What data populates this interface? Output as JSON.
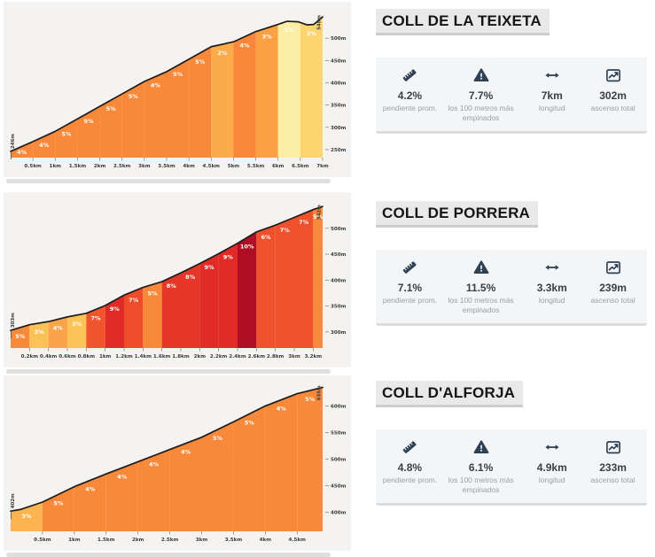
{
  "colors": {
    "icon": "#2f4154",
    "title_bg": "#e9e9e9",
    "card_bg": "#f3f5f6",
    "chart_bg": "#f4f3f1",
    "curve": "#1c1c1c",
    "axis_text": "#3a3a3a",
    "segment_label": "#ffffff"
  },
  "climbs": [
    {
      "title": "COLL DE LA TEIXETA",
      "stats": [
        {
          "icon": "ruler-icon",
          "value": "4.2%",
          "label": "pendiente prom."
        },
        {
          "icon": "warning-icon",
          "value": "7.7%",
          "label": "los 100 metros más empinados"
        },
        {
          "icon": "length-arrow-icon",
          "value": "7km",
          "label": "longitud"
        },
        {
          "icon": "ascent-chart-icon",
          "value": "302m",
          "label": "ascenso total"
        }
      ]
    },
    {
      "title": "COLL DE PORRERA",
      "stats": [
        {
          "icon": "ruler-icon",
          "value": "7.1%",
          "label": "pendiente prom."
        },
        {
          "icon": "warning-icon",
          "value": "11.5%",
          "label": "los 100 metros más empinados"
        },
        {
          "icon": "length-arrow-icon",
          "value": "3.3km",
          "label": "longitud"
        },
        {
          "icon": "ascent-chart-icon",
          "value": "239m",
          "label": "ascenso total"
        }
      ]
    },
    {
      "title": "COLL D'ALFORJA",
      "stats": [
        {
          "icon": "ruler-icon",
          "value": "4.8%",
          "label": "pendiente prom."
        },
        {
          "icon": "warning-icon",
          "value": "6.1%",
          "label": "los 100 metros más empinados"
        },
        {
          "icon": "length-arrow-icon",
          "value": "4.9km",
          "label": "longitud"
        },
        {
          "icon": "ascent-chart-icon",
          "value": "233m",
          "label": "ascenso total"
        }
      ]
    }
  ],
  "chart_data": [
    {
      "type": "area",
      "title": "COLL DE LA TEIXETA",
      "xlabel": "",
      "ylabel": "",
      "grid": false,
      "legend": false,
      "total_km": 7,
      "ylim": [
        232,
        566
      ],
      "start_label": "246m",
      "summit_label": "548m",
      "x_ticks": [
        {
          "km": 0.5,
          "label": "0.5km"
        },
        {
          "km": 1,
          "label": "1km"
        },
        {
          "km": 1.5,
          "label": "1.5km"
        },
        {
          "km": 2,
          "label": "2km"
        },
        {
          "km": 2.5,
          "label": "2.5km"
        },
        {
          "km": 3,
          "label": "3km"
        },
        {
          "km": 3.5,
          "label": "3.5km"
        },
        {
          "km": 4,
          "label": "4km"
        },
        {
          "km": 4.5,
          "label": "4.5km"
        },
        {
          "km": 5,
          "label": "5km"
        },
        {
          "km": 5.5,
          "label": "5.5km"
        },
        {
          "km": 6,
          "label": "6km"
        },
        {
          "km": 6.5,
          "label": "6.5km"
        },
        {
          "km": 7,
          "label": "7km"
        }
      ],
      "y_ticks": [
        {
          "m": 250,
          "label": "250m"
        },
        {
          "m": 300,
          "label": "300m"
        },
        {
          "m": 350,
          "label": "350m"
        },
        {
          "m": 400,
          "label": "400m"
        },
        {
          "m": 450,
          "label": "450m"
        },
        {
          "m": 500,
          "label": "500m"
        }
      ],
      "segments": [
        {
          "from": 0,
          "to": 0.5,
          "pct": "4%",
          "color": "#f9893a"
        },
        {
          "from": 0.5,
          "to": 1,
          "pct": "4%",
          "color": "#f9893a"
        },
        {
          "from": 1,
          "to": 1.5,
          "pct": "5%",
          "color": "#f9893a"
        },
        {
          "from": 1.5,
          "to": 2,
          "pct": "5%",
          "color": "#f9893a"
        },
        {
          "from": 2,
          "to": 2.5,
          "pct": "5%",
          "color": "#f9893a"
        },
        {
          "from": 2.5,
          "to": 3,
          "pct": "5%",
          "color": "#f9893a"
        },
        {
          "from": 3,
          "to": 3.5,
          "pct": "4%",
          "color": "#f9893a"
        },
        {
          "from": 3.5,
          "to": 4,
          "pct": "5%",
          "color": "#f9893a"
        },
        {
          "from": 4,
          "to": 4.5,
          "pct": "5%",
          "color": "#f9893a"
        },
        {
          "from": 4.5,
          "to": 5,
          "pct": "2%",
          "color": "#fbab49"
        },
        {
          "from": 5,
          "to": 5.5,
          "pct": "4%",
          "color": "#f8863b"
        },
        {
          "from": 5.5,
          "to": 6,
          "pct": "3%",
          "color": "#faa143"
        },
        {
          "from": 6,
          "to": 6.5,
          "pct": "1%",
          "color": "#fdeea6"
        },
        {
          "from": 6.5,
          "to": 7,
          "pct": "2%",
          "color": "#fcd571"
        }
      ],
      "points": [
        [
          0,
          246
        ],
        [
          0.5,
          268
        ],
        [
          1,
          291
        ],
        [
          1.5,
          319
        ],
        [
          2,
          347
        ],
        [
          2.5,
          375
        ],
        [
          3,
          403
        ],
        [
          3.5,
          425
        ],
        [
          4,
          453
        ],
        [
          4.5,
          481
        ],
        [
          5,
          492
        ],
        [
          5.5,
          515
        ],
        [
          6,
          531
        ],
        [
          6.2,
          538
        ],
        [
          6.45,
          537
        ],
        [
          6.65,
          530
        ],
        [
          6.8,
          531
        ],
        [
          7,
          548
        ]
      ]
    },
    {
      "type": "area",
      "title": "COLL DE PORRERA",
      "xlabel": "",
      "ylabel": "",
      "grid": false,
      "legend": false,
      "total_km": 3.3,
      "ylim": [
        269,
        556
      ],
      "start_label": "303m",
      "summit_label": "542m",
      "x_ticks": [
        {
          "km": 0.2,
          "label": "0.2km"
        },
        {
          "km": 0.4,
          "label": "0.4km"
        },
        {
          "km": 0.6,
          "label": "0.6km"
        },
        {
          "km": 0.8,
          "label": "0.8km"
        },
        {
          "km": 1,
          "label": "1km"
        },
        {
          "km": 1.2,
          "label": "1.2km"
        },
        {
          "km": 1.4,
          "label": "1.4km"
        },
        {
          "km": 1.6,
          "label": "1.6km"
        },
        {
          "km": 1.8,
          "label": "1.8km"
        },
        {
          "km": 2,
          "label": "2km"
        },
        {
          "km": 2.2,
          "label": "2.2km"
        },
        {
          "km": 2.4,
          "label": "2.4km"
        },
        {
          "km": 2.6,
          "label": "2.6km"
        },
        {
          "km": 2.8,
          "label": "2.8km"
        },
        {
          "km": 3,
          "label": "3km"
        },
        {
          "km": 3.2,
          "label": "3.2km"
        }
      ],
      "y_ticks": [
        {
          "m": 300,
          "label": "300m"
        },
        {
          "m": 350,
          "label": "350m"
        },
        {
          "m": 400,
          "label": "400m"
        },
        {
          "m": 450,
          "label": "450m"
        },
        {
          "m": 500,
          "label": "500m"
        }
      ],
      "segments": [
        {
          "from": 0,
          "to": 0.2,
          "pct": "5%",
          "color": "#f9893a"
        },
        {
          "from": 0.2,
          "to": 0.4,
          "pct": "3%",
          "color": "#fbc258"
        },
        {
          "from": 0.4,
          "to": 0.6,
          "pct": "4%",
          "color": "#faa348"
        },
        {
          "from": 0.6,
          "to": 0.8,
          "pct": "3%",
          "color": "#fbc258"
        },
        {
          "from": 0.8,
          "to": 1,
          "pct": "7%",
          "color": "#f1552d"
        },
        {
          "from": 1,
          "to": 1.2,
          "pct": "9%",
          "color": "#e02b26"
        },
        {
          "from": 1.2,
          "to": 1.4,
          "pct": "7%",
          "color": "#ee4c2b"
        },
        {
          "from": 1.4,
          "to": 1.6,
          "pct": "5%",
          "color": "#f9893a"
        },
        {
          "from": 1.6,
          "to": 1.8,
          "pct": "8%",
          "color": "#e63628"
        },
        {
          "from": 1.8,
          "to": 2,
          "pct": "8%",
          "color": "#e63628"
        },
        {
          "from": 2,
          "to": 2.2,
          "pct": "9%",
          "color": "#e02b26"
        },
        {
          "from": 2.2,
          "to": 2.4,
          "pct": "9%",
          "color": "#e02b26"
        },
        {
          "from": 2.4,
          "to": 2.6,
          "pct": "10%",
          "color": "#b00e24"
        },
        {
          "from": 2.6,
          "to": 2.8,
          "pct": "6%",
          "color": "#ef512c"
        },
        {
          "from": 2.8,
          "to": 3,
          "pct": "7%",
          "color": "#ef512c"
        },
        {
          "from": 3,
          "to": 3.2,
          "pct": "7%",
          "color": "#ef512c"
        },
        {
          "from": 3.2,
          "to": 3.3,
          "pct": "5%",
          "color": "#f9893a"
        }
      ],
      "points": [
        [
          0,
          303
        ],
        [
          0.2,
          314
        ],
        [
          0.4,
          320
        ],
        [
          0.6,
          329
        ],
        [
          0.8,
          336
        ],
        [
          1,
          351
        ],
        [
          1.2,
          371
        ],
        [
          1.4,
          386
        ],
        [
          1.6,
          397
        ],
        [
          1.8,
          414
        ],
        [
          2,
          432
        ],
        [
          2.2,
          451
        ],
        [
          2.4,
          471
        ],
        [
          2.6,
          493
        ],
        [
          2.8,
          506
        ],
        [
          3,
          521
        ],
        [
          3.2,
          536
        ],
        [
          3.3,
          542
        ]
      ]
    },
    {
      "type": "area",
      "title": "COLL D'ALFORJA",
      "xlabel": "",
      "ylabel": "",
      "grid": false,
      "legend": false,
      "total_km": 4.9,
      "ylim": [
        364,
        644
      ],
      "start_label": "402m",
      "summit_label": "635m",
      "x_ticks": [
        {
          "km": 0.5,
          "label": "0.5km"
        },
        {
          "km": 1,
          "label": "1km"
        },
        {
          "km": 1.5,
          "label": "1.5km"
        },
        {
          "km": 2,
          "label": "2km"
        },
        {
          "km": 2.5,
          "label": "2.5km"
        },
        {
          "km": 3,
          "label": "3km"
        },
        {
          "km": 3.5,
          "label": "3.5km"
        },
        {
          "km": 4,
          "label": "4km"
        },
        {
          "km": 4.5,
          "label": "4.5km"
        }
      ],
      "y_ticks": [
        {
          "m": 400,
          "label": "400m"
        },
        {
          "m": 450,
          "label": "450m"
        },
        {
          "m": 500,
          "label": "500m"
        },
        {
          "m": 550,
          "label": "550m"
        },
        {
          "m": 600,
          "label": "600m"
        }
      ],
      "segments": [
        {
          "from": 0,
          "to": 0.5,
          "pct": "3%",
          "color": "#fbb44f"
        },
        {
          "from": 0.5,
          "to": 1,
          "pct": "5%",
          "color": "#f9893a"
        },
        {
          "from": 1,
          "to": 1.5,
          "pct": "4%",
          "color": "#f9893a"
        },
        {
          "from": 1.5,
          "to": 2,
          "pct": "4%",
          "color": "#f9893a"
        },
        {
          "from": 2,
          "to": 2.5,
          "pct": "4%",
          "color": "#f9893a"
        },
        {
          "from": 2.5,
          "to": 3,
          "pct": "4%",
          "color": "#f9893a"
        },
        {
          "from": 3,
          "to": 3.5,
          "pct": "5%",
          "color": "#f9893a"
        },
        {
          "from": 3.5,
          "to": 4,
          "pct": "5%",
          "color": "#f9893a"
        },
        {
          "from": 4,
          "to": 4.5,
          "pct": "4%",
          "color": "#f9893a"
        },
        {
          "from": 4.5,
          "to": 4.9,
          "pct": "5%",
          "color": "#f9893a"
        }
      ],
      "points": [
        [
          0,
          402
        ],
        [
          0.15,
          405
        ],
        [
          0.5,
          419
        ],
        [
          1,
          448
        ],
        [
          1.5,
          472
        ],
        [
          2,
          495
        ],
        [
          2.5,
          518
        ],
        [
          3,
          541
        ],
        [
          3.5,
          570
        ],
        [
          4,
          600
        ],
        [
          4.5,
          623
        ],
        [
          4.9,
          635
        ]
      ]
    }
  ]
}
